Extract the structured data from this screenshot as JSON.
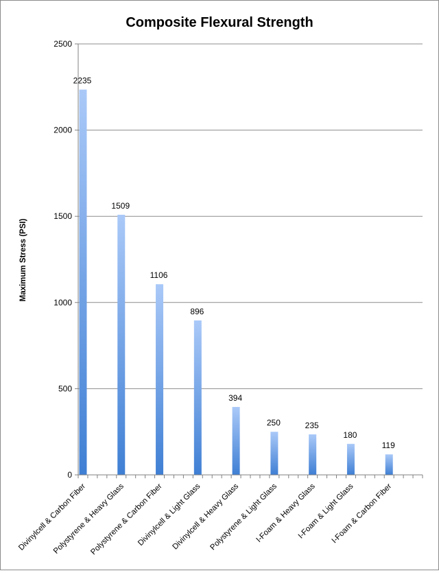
{
  "chart_data": {
    "type": "bar",
    "title": "Composite Flexural Strength",
    "xlabel": "",
    "ylabel": "Maximum Stress (PSI)",
    "ylim": [
      0,
      2500
    ],
    "yticks": [
      0,
      500,
      1000,
      1500,
      2000,
      2500
    ],
    "grid": true,
    "categories": [
      "Divinylcell & Carbon Fiber",
      "Polystyrene & Heavy Glass",
      "Polystyrene & Carbon Fiber",
      "Divinylcell & Light Glass",
      "Divinylcell & Heavy Glass",
      "Polystyrene & Light Glass",
      "I-Foam & Heavy Glass",
      "I-Foam & Light Glass",
      "I-Foam & Carbon Fiber"
    ],
    "values": [
      2235,
      1509,
      1106,
      896,
      394,
      250,
      235,
      180,
      119
    ],
    "bar_color_top": "#aac9f8",
    "bar_color_bottom": "#3f7fd4"
  }
}
